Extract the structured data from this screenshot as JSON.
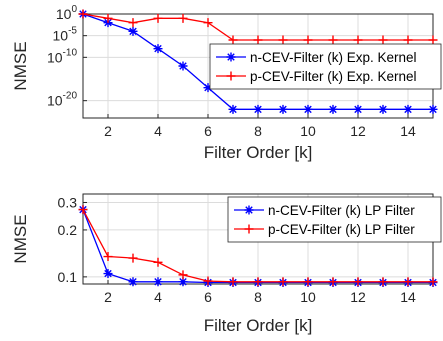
{
  "chart_data": [
    {
      "type": "line",
      "x": [
        1,
        2,
        3,
        4,
        5,
        6,
        7,
        8,
        9,
        10,
        11,
        12,
        13,
        14,
        15
      ],
      "series": [
        {
          "name": "n-CEV-Filter (k) Exp. Kernel",
          "color": "#0000ff",
          "marker": "asterisk",
          "values": [
            1,
            0.01,
            0.0001,
            1e-08,
            1e-12,
            1e-17,
            1e-22,
            1e-22,
            1e-22,
            1e-22,
            1e-22,
            1e-22,
            1e-22,
            1e-22,
            1e-22
          ]
        },
        {
          "name": "p-CEV-Filter (k) Exp. Kernel",
          "color": "#ff0000",
          "marker": "plus",
          "values": [
            1,
            0.1,
            0.01,
            0.1,
            0.1,
            0.01,
            1e-06,
            1e-06,
            1e-06,
            1e-06,
            1e-06,
            1e-06,
            1e-06,
            1e-06,
            1e-06
          ]
        }
      ],
      "xlabel": "Filter Order [k]",
      "ylabel": "NMSE",
      "yscale": "log",
      "xlim": [
        1,
        15
      ],
      "ylim_log10": [
        -24,
        0
      ],
      "xticks": [
        2,
        4,
        6,
        8,
        10,
        12,
        14
      ],
      "yticks": [
        "10^0",
        "10^-5",
        "10^-10",
        "10^-20"
      ],
      "yticks_log10": [
        0,
        -5,
        -10,
        -20
      ],
      "grid": true,
      "legend": "right"
    },
    {
      "type": "line",
      "x": [
        1,
        2,
        3,
        4,
        5,
        6,
        7,
        8,
        9,
        10,
        11,
        12,
        13,
        14,
        15
      ],
      "series": [
        {
          "name": "n-CEV-Filter (k) LP Filter",
          "color": "#0000ff",
          "marker": "asterisk",
          "values": [
            0.27,
            0.105,
            0.093,
            0.093,
            0.093,
            0.092,
            0.092,
            0.092,
            0.092,
            0.092,
            0.092,
            0.092,
            0.092,
            0.092,
            0.092
          ]
        },
        {
          "name": "p-CEV-Filter (k) LP Filter",
          "color": "#ff0000",
          "marker": "plus",
          "values": [
            0.27,
            0.135,
            0.132,
            0.124,
            0.103,
            0.094,
            0.093,
            0.093,
            0.093,
            0.093,
            0.093,
            0.093,
            0.093,
            0.093,
            0.093
          ]
        }
      ],
      "xlabel": "Filter Order [k]",
      "ylabel": "NMSE",
      "yscale": "log",
      "xlim": [
        1,
        15
      ],
      "ylim": [
        0.09,
        0.34
      ],
      "xticks": [
        2,
        4,
        6,
        8,
        10,
        12,
        14
      ],
      "yticks": [
        0.1,
        0.2,
        0.3
      ],
      "grid": true,
      "legend": "top-right"
    }
  ]
}
